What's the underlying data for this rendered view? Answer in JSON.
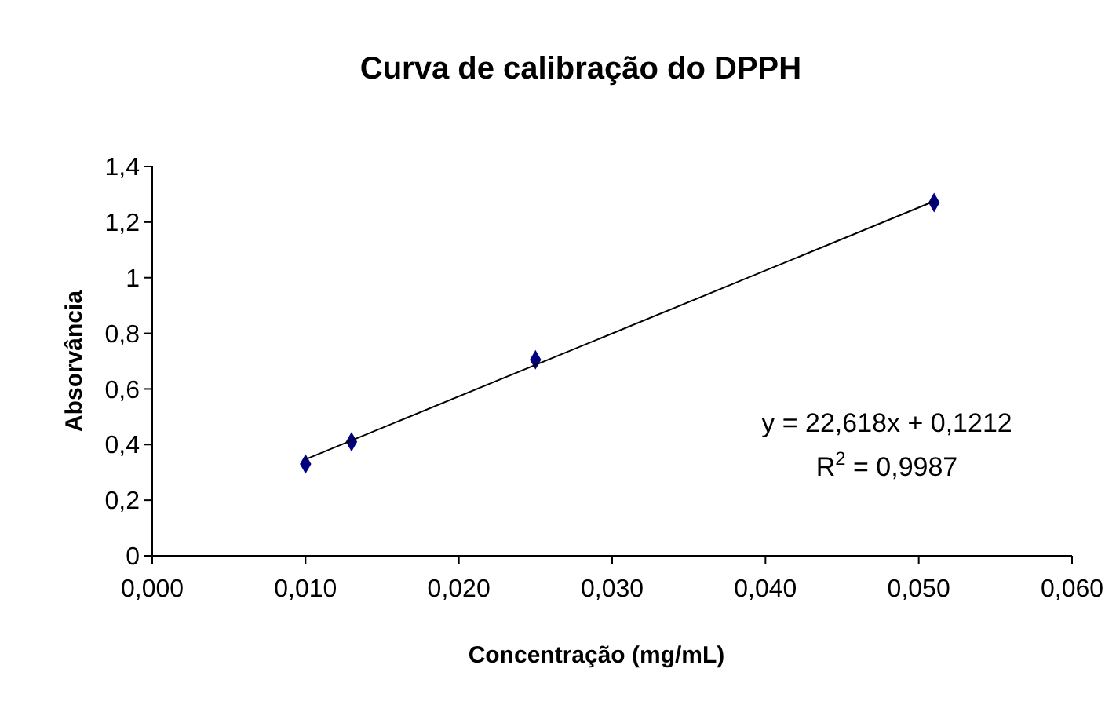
{
  "chart_data": {
    "type": "scatter",
    "title": "Curva de calibração do DPPH",
    "xlabel": "Concentração (mg/mL)",
    "ylabel": "Absorvância",
    "series": [
      {
        "color": "#000080",
        "x": [
          0.01,
          0.013,
          0.025,
          0.051
        ],
        "values": [
          0.33,
          0.41,
          0.705,
          1.27
        ],
        "marker": "diamond"
      },
      {
        "type": "line",
        "color": "#000000",
        "x": [
          0.01,
          0.051
        ],
        "values": [
          0.347,
          1.275
        ],
        "marker": "none"
      }
    ],
    "xlim": [
      0,
      0.06
    ],
    "ylim": [
      0,
      1.4
    ],
    "xticks": [
      {
        "value": 0,
        "label": "0,000"
      },
      {
        "value": 0.01,
        "label": "0,010"
      },
      {
        "value": 0.02,
        "label": "0,020"
      },
      {
        "value": 0.03,
        "label": "0,030"
      },
      {
        "value": 0.04,
        "label": "0,040"
      },
      {
        "value": 0.05,
        "label": "0,050"
      },
      {
        "value": 0.06,
        "label": "0,060"
      }
    ],
    "yticks": [
      0,
      {
        "value": 0.2,
        "label": "0,2"
      },
      {
        "value": 0.4,
        "label": "0,4"
      },
      {
        "value": 0.6,
        "label": "0,6"
      },
      {
        "value": 0.8,
        "label": "0,8"
      },
      1,
      {
        "value": 1.2,
        "label": "1,2"
      },
      {
        "value": 1.4,
        "label": "1,4"
      }
    ],
    "annotations": [
      "y = 22,618x + 0,1212",
      "R$^{2}$ = 0,9987"
    ],
    "grid": false
  }
}
